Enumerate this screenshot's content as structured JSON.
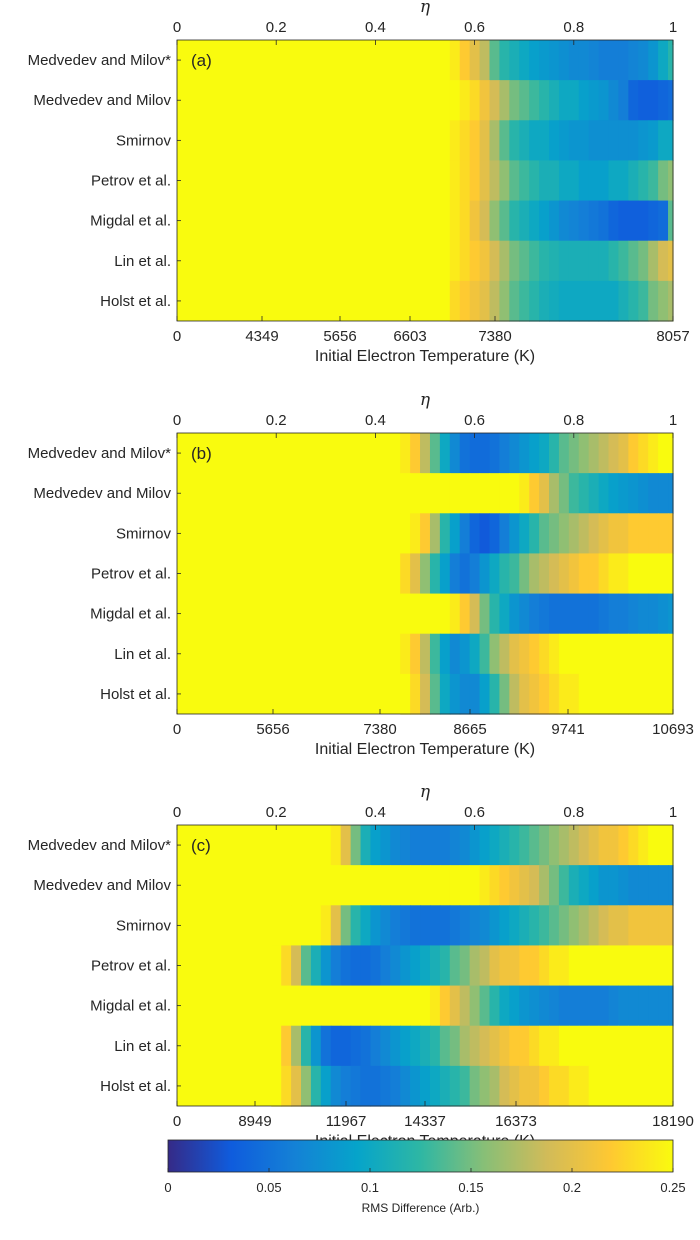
{
  "chart_data": [
    {
      "type": "heatmap",
      "panel_label": "(a)",
      "rows": [
        "Medvedev and Milov*",
        "Medvedev and Milov",
        "Smirnov",
        "Petrov et al.",
        "Migdal et al.",
        "Lin et al.",
        "Holst et al."
      ],
      "top_axis": {
        "label": "η",
        "ticks": [
          "0",
          "0.2",
          "0.4",
          "0.6",
          "0.8",
          "1"
        ],
        "range": [
          0,
          1
        ]
      },
      "bottom_axis": {
        "label": "Initial Electron Temperature (K)",
        "ticks": [
          "0",
          "4349",
          "5656",
          "6603",
          "7380",
          "8057"
        ]
      },
      "eta_bins": [
        0.56,
        0.58,
        0.6,
        0.62,
        0.64,
        0.66,
        0.68,
        0.7,
        0.72,
        0.74,
        0.76,
        0.78,
        0.8,
        0.82,
        0.84,
        0.86,
        0.88,
        0.9,
        0.92,
        0.94,
        0.96,
        0.98,
        1.0
      ],
      "values": [
        [
          0.24,
          0.22,
          0.2,
          0.18,
          0.14,
          0.12,
          0.11,
          0.1,
          0.09,
          0.085,
          0.08,
          0.075,
          0.07,
          0.07,
          0.065,
          0.06,
          0.06,
          0.06,
          0.065,
          0.07,
          0.08,
          0.1,
          0.12
        ],
        [
          0.25,
          0.24,
          0.23,
          0.21,
          0.19,
          0.17,
          0.15,
          0.14,
          0.13,
          0.12,
          0.11,
          0.1,
          0.1,
          0.09,
          0.085,
          0.08,
          0.07,
          0.06,
          0.04,
          0.035,
          0.035,
          0.04,
          0.045
        ],
        [
          0.24,
          0.23,
          0.22,
          0.2,
          0.17,
          0.14,
          0.12,
          0.11,
          0.1,
          0.1,
          0.09,
          0.085,
          0.08,
          0.08,
          0.075,
          0.075,
          0.075,
          0.075,
          0.075,
          0.08,
          0.085,
          0.1,
          0.1
        ],
        [
          0.24,
          0.23,
          0.22,
          0.2,
          0.18,
          0.16,
          0.14,
          0.13,
          0.12,
          0.11,
          0.11,
          0.1,
          0.1,
          0.09,
          0.09,
          0.09,
          0.1,
          0.1,
          0.11,
          0.12,
          0.13,
          0.15,
          0.16
        ],
        [
          0.24,
          0.23,
          0.21,
          0.19,
          0.16,
          0.14,
          0.12,
          0.11,
          0.1,
          0.09,
          0.08,
          0.07,
          0.065,
          0.06,
          0.055,
          0.05,
          0.04,
          0.035,
          0.035,
          0.035,
          0.04,
          0.045,
          0.14
        ],
        [
          0.24,
          0.23,
          0.22,
          0.21,
          0.19,
          0.17,
          0.15,
          0.14,
          0.13,
          0.12,
          0.115,
          0.11,
          0.11,
          0.11,
          0.11,
          0.11,
          0.12,
          0.13,
          0.14,
          0.15,
          0.17,
          0.19,
          0.2
        ],
        [
          0.23,
          0.22,
          0.21,
          0.2,
          0.18,
          0.16,
          0.14,
          0.13,
          0.12,
          0.11,
          0.105,
          0.1,
          0.1,
          0.1,
          0.1,
          0.1,
          0.1,
          0.11,
          0.12,
          0.13,
          0.15,
          0.16,
          0.17
        ]
      ]
    },
    {
      "type": "heatmap",
      "panel_label": "(b)",
      "rows": [
        "Medvedev and Milov*",
        "Medvedev and Milov",
        "Smirnov",
        "Petrov et al.",
        "Migdal et al.",
        "Lin et al.",
        "Holst et al."
      ],
      "top_axis": {
        "label": "η",
        "ticks": [
          "0",
          "0.2",
          "0.4",
          "0.6",
          "0.8",
          "1"
        ],
        "range": [
          0,
          1
        ]
      },
      "bottom_axis": {
        "label": "Initial Electron Temperature (K)",
        "ticks": [
          "0",
          "5656",
          "7380",
          "8665",
          "9741",
          "10693"
        ]
      },
      "eta_bins": [
        0.46,
        0.48,
        0.5,
        0.52,
        0.54,
        0.56,
        0.58,
        0.6,
        0.62,
        0.64,
        0.66,
        0.68,
        0.7,
        0.72,
        0.74,
        0.76,
        0.78,
        0.8,
        0.82,
        0.84,
        0.86,
        0.88,
        0.9,
        0.92,
        0.94,
        0.96,
        0.98,
        1.0
      ],
      "values": [
        [
          0.24,
          0.22,
          0.18,
          0.14,
          0.1,
          0.07,
          0.05,
          0.045,
          0.045,
          0.05,
          0.06,
          0.07,
          0.08,
          0.09,
          0.1,
          0.12,
          0.14,
          0.15,
          0.16,
          0.17,
          0.18,
          0.19,
          0.2,
          0.22,
          0.23,
          0.24,
          0.25,
          0.25
        ],
        [
          0.25,
          0.25,
          0.25,
          0.25,
          0.25,
          0.25,
          0.25,
          0.25,
          0.25,
          0.25,
          0.25,
          0.25,
          0.24,
          0.22,
          0.2,
          0.17,
          0.15,
          0.13,
          0.12,
          0.11,
          0.1,
          0.09,
          0.085,
          0.08,
          0.075,
          0.07,
          0.07,
          0.07
        ],
        [
          0.25,
          0.24,
          0.22,
          0.17,
          0.12,
          0.09,
          0.06,
          0.04,
          0.03,
          0.04,
          0.06,
          0.08,
          0.1,
          0.12,
          0.14,
          0.15,
          0.16,
          0.17,
          0.18,
          0.19,
          0.2,
          0.21,
          0.21,
          0.22,
          0.22,
          0.22,
          0.22,
          0.22
        ],
        [
          0.23,
          0.2,
          0.16,
          0.12,
          0.09,
          0.06,
          0.05,
          0.06,
          0.08,
          0.1,
          0.12,
          0.13,
          0.15,
          0.17,
          0.18,
          0.19,
          0.2,
          0.21,
          0.22,
          0.22,
          0.23,
          0.24,
          0.24,
          0.25,
          0.25,
          0.25,
          0.25,
          0.25
        ],
        [
          0.25,
          0.25,
          0.25,
          0.25,
          0.25,
          0.24,
          0.22,
          0.19,
          0.15,
          0.12,
          0.1,
          0.08,
          0.07,
          0.06,
          0.055,
          0.05,
          0.05,
          0.05,
          0.05,
          0.05,
          0.055,
          0.06,
          0.06,
          0.065,
          0.07,
          0.07,
          0.075,
          0.08
        ],
        [
          0.24,
          0.22,
          0.18,
          0.13,
          0.09,
          0.07,
          0.08,
          0.1,
          0.13,
          0.16,
          0.18,
          0.2,
          0.21,
          0.22,
          0.23,
          0.24,
          0.25,
          0.25,
          0.25,
          0.25,
          0.25,
          0.25,
          0.25,
          0.25,
          0.25,
          0.25,
          0.25,
          0.25
        ],
        [
          0.25,
          0.23,
          0.19,
          0.14,
          0.1,
          0.08,
          0.07,
          0.07,
          0.09,
          0.12,
          0.15,
          0.18,
          0.2,
          0.21,
          0.22,
          0.23,
          0.24,
          0.24,
          0.25,
          0.25,
          0.25,
          0.25,
          0.25,
          0.25,
          0.25,
          0.25,
          0.25,
          0.25
        ]
      ]
    },
    {
      "type": "heatmap",
      "panel_label": "(c)",
      "rows": [
        "Medvedev and Milov*",
        "Medvedev and Milov",
        "Smirnov",
        "Petrov et al.",
        "Migdal et al.",
        "Lin et al.",
        "Holst et al."
      ],
      "top_axis": {
        "label": "η",
        "ticks": [
          "0",
          "0.2",
          "0.4",
          "0.6",
          "0.8",
          "1"
        ],
        "range": [
          0,
          1
        ]
      },
      "bottom_axis": {
        "label": "Initial Electron Temperature (K)",
        "ticks": [
          "0",
          "8949",
          "11967",
          "14337",
          "16373",
          "18190"
        ]
      },
      "eta_bins": [
        0.2,
        0.22,
        0.24,
        0.26,
        0.28,
        0.3,
        0.32,
        0.34,
        0.36,
        0.38,
        0.4,
        0.42,
        0.44,
        0.46,
        0.48,
        0.5,
        0.52,
        0.54,
        0.56,
        0.58,
        0.6,
        0.62,
        0.64,
        0.66,
        0.68,
        0.7,
        0.72,
        0.74,
        0.76,
        0.78,
        0.8,
        0.82,
        0.84,
        0.86,
        0.88,
        0.9,
        0.92,
        0.94,
        0.96,
        0.98,
        1.0
      ],
      "values": [
        [
          0.25,
          0.25,
          0.25,
          0.25,
          0.25,
          0.25,
          0.24,
          0.2,
          0.15,
          0.11,
          0.09,
          0.08,
          0.07,
          0.065,
          0.06,
          0.06,
          0.06,
          0.06,
          0.065,
          0.07,
          0.08,
          0.09,
          0.1,
          0.11,
          0.12,
          0.13,
          0.14,
          0.15,
          0.16,
          0.17,
          0.18,
          0.19,
          0.2,
          0.21,
          0.21,
          0.22,
          0.23,
          0.24,
          0.25,
          0.25,
          0.25
        ],
        [
          0.25,
          0.25,
          0.25,
          0.25,
          0.25,
          0.25,
          0.25,
          0.25,
          0.25,
          0.25,
          0.25,
          0.25,
          0.25,
          0.25,
          0.25,
          0.25,
          0.25,
          0.25,
          0.25,
          0.25,
          0.25,
          0.24,
          0.23,
          0.22,
          0.21,
          0.2,
          0.19,
          0.17,
          0.15,
          0.13,
          0.11,
          0.1,
          0.09,
          0.08,
          0.08,
          0.075,
          0.07,
          0.07,
          0.07,
          0.07,
          0.07
        ],
        [
          0.25,
          0.25,
          0.25,
          0.25,
          0.25,
          0.24,
          0.2,
          0.15,
          0.12,
          0.1,
          0.08,
          0.07,
          0.06,
          0.055,
          0.05,
          0.05,
          0.05,
          0.05,
          0.055,
          0.06,
          0.065,
          0.07,
          0.08,
          0.09,
          0.1,
          0.11,
          0.12,
          0.13,
          0.14,
          0.15,
          0.16,
          0.17,
          0.18,
          0.19,
          0.2,
          0.2,
          0.21,
          0.21,
          0.21,
          0.21,
          0.21
        ],
        [
          0.25,
          0.23,
          0.19,
          0.14,
          0.11,
          0.08,
          0.06,
          0.05,
          0.045,
          0.045,
          0.05,
          0.06,
          0.07,
          0.08,
          0.09,
          0.1,
          0.11,
          0.12,
          0.14,
          0.15,
          0.17,
          0.18,
          0.2,
          0.21,
          0.21,
          0.22,
          0.22,
          0.23,
          0.24,
          0.24,
          0.25,
          0.25,
          0.25,
          0.25,
          0.25,
          0.25,
          0.25,
          0.25,
          0.25,
          0.25,
          0.25
        ],
        [
          0.25,
          0.25,
          0.25,
          0.25,
          0.25,
          0.25,
          0.25,
          0.25,
          0.25,
          0.25,
          0.25,
          0.25,
          0.25,
          0.25,
          0.25,
          0.25,
          0.24,
          0.22,
          0.2,
          0.18,
          0.16,
          0.14,
          0.12,
          0.1,
          0.09,
          0.08,
          0.075,
          0.07,
          0.065,
          0.06,
          0.06,
          0.06,
          0.06,
          0.06,
          0.065,
          0.07,
          0.07,
          0.07,
          0.07,
          0.07,
          0.07
        ],
        [
          0.25,
          0.22,
          0.17,
          0.12,
          0.08,
          0.05,
          0.04,
          0.04,
          0.045,
          0.05,
          0.06,
          0.07,
          0.08,
          0.09,
          0.1,
          0.11,
          0.12,
          0.14,
          0.15,
          0.17,
          0.18,
          0.19,
          0.2,
          0.21,
          0.22,
          0.22,
          0.23,
          0.24,
          0.24,
          0.25,
          0.25,
          0.25,
          0.25,
          0.25,
          0.25,
          0.25,
          0.25,
          0.25,
          0.25,
          0.25,
          0.25
        ],
        [
          0.25,
          0.23,
          0.2,
          0.16,
          0.12,
          0.09,
          0.07,
          0.06,
          0.055,
          0.05,
          0.05,
          0.055,
          0.06,
          0.07,
          0.08,
          0.09,
          0.1,
          0.11,
          0.12,
          0.13,
          0.15,
          0.16,
          0.17,
          0.19,
          0.2,
          0.21,
          0.21,
          0.22,
          0.23,
          0.23,
          0.24,
          0.24,
          0.25,
          0.25,
          0.25,
          0.25,
          0.25,
          0.25,
          0.25,
          0.25,
          0.25
        ]
      ]
    }
  ],
  "colorbar": {
    "label": "RMS Difference (Arb.)",
    "ticks": [
      "0",
      "0.05",
      "0.1",
      "0.15",
      "0.2",
      "0.25"
    ],
    "range": [
      0,
      0.25
    ],
    "colormap": "parula",
    "stops": [
      "#352a87",
      "#0f5cdd",
      "#1481d6",
      "#06a4ca",
      "#2eb7a4",
      "#87bf77",
      "#d1bb59",
      "#fec832",
      "#f9fb0e"
    ]
  }
}
